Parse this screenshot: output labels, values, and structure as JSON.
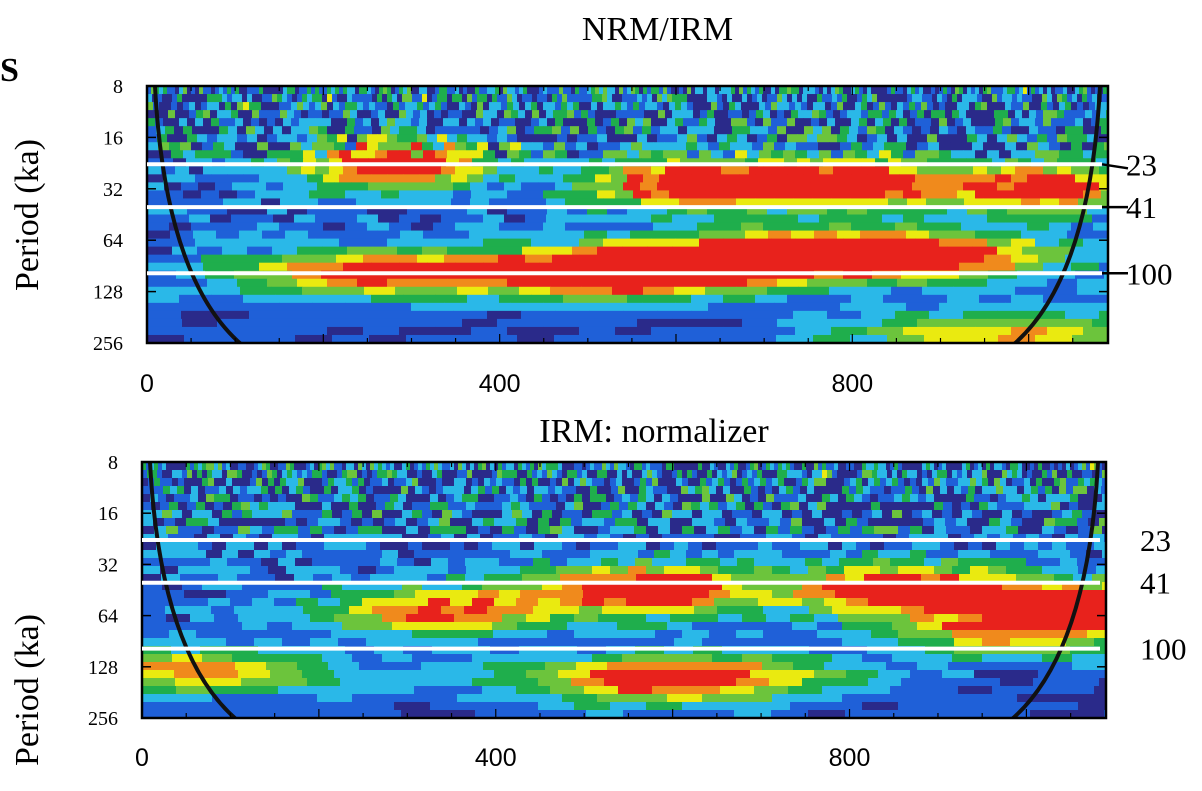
{
  "panel_marker": "S",
  "chart_data": [
    {
      "type": "heatmap",
      "title": "NRM/IRM",
      "ylabel": "Period (ka)",
      "xlabel": "",
      "x_ticks": [
        "0",
        "400",
        "800"
      ],
      "x_tick_values": [
        0,
        400,
        800
      ],
      "xlim": [
        0,
        1090
      ],
      "y_ticks": [
        "8",
        "16",
        "32",
        "64",
        "128",
        "256"
      ],
      "y_tick_values": [
        8,
        16,
        32,
        64,
        128,
        256
      ],
      "ylim": [
        8,
        256
      ],
      "y_scale": "log2-reversed",
      "reference_periods": [
        {
          "label": "23",
          "value": 23
        },
        {
          "label": "41",
          "value": 41
        },
        {
          "label": "100",
          "value": 100
        }
      ],
      "colormap": [
        "#2a2a8a",
        "#1f60d8",
        "#2ab8e8",
        "#1fae4c",
        "#6cc43c",
        "#eaea10",
        "#f08a1c",
        "#e8221c",
        "#b42c8c"
      ],
      "power_blobs": [
        {
          "x": 280,
          "period": 23,
          "level": 0.92
        },
        {
          "x": 620,
          "period": 30,
          "level": 0.95
        },
        {
          "x": 800,
          "period": 30,
          "level": 0.9
        },
        {
          "x": 1020,
          "period": 32,
          "level": 0.85
        },
        {
          "x": 620,
          "period": 90,
          "level": 0.95
        },
        {
          "x": 250,
          "period": 100,
          "level": 0.8
        },
        {
          "x": 510,
          "period": 100,
          "level": 0.78
        },
        {
          "x": 770,
          "period": 75,
          "level": 0.7
        },
        {
          "x": 900,
          "period": 80,
          "level": 0.7
        },
        {
          "x": 980,
          "period": 230,
          "level": 0.62
        }
      ]
    },
    {
      "type": "heatmap",
      "title": "IRM: normalizer",
      "ylabel": "Period (ka)",
      "xlabel": "",
      "x_ticks": [
        "0",
        "400",
        "800"
      ],
      "x_tick_values": [
        0,
        400,
        800
      ],
      "xlim": [
        0,
        1090
      ],
      "y_ticks": [
        "8",
        "16",
        "32",
        "64",
        "128",
        "256"
      ],
      "y_tick_values": [
        8,
        16,
        32,
        64,
        128,
        256
      ],
      "ylim": [
        8,
        256
      ],
      "y_scale": "log2-reversed",
      "reference_periods": [
        {
          "label": "23",
          "value": 23
        },
        {
          "label": "41",
          "value": 41
        },
        {
          "label": "100",
          "value": 100
        }
      ],
      "colormap": [
        "#2a2a8a",
        "#1f60d8",
        "#2ab8e8",
        "#1fae4c",
        "#6cc43c",
        "#eaea10",
        "#f08a1c",
        "#e8221c",
        "#b42c8c"
      ],
      "power_blobs": [
        {
          "x": 570,
          "period": 45,
          "level": 0.95
        },
        {
          "x": 860,
          "period": 45,
          "level": 0.95
        },
        {
          "x": 1060,
          "period": 55,
          "level": 0.85
        },
        {
          "x": 600,
          "period": 150,
          "level": 0.95
        },
        {
          "x": 340,
          "period": 60,
          "level": 0.72
        },
        {
          "x": 60,
          "period": 135,
          "level": 0.62
        },
        {
          "x": 980,
          "period": 80,
          "level": 0.6
        }
      ]
    }
  ]
}
